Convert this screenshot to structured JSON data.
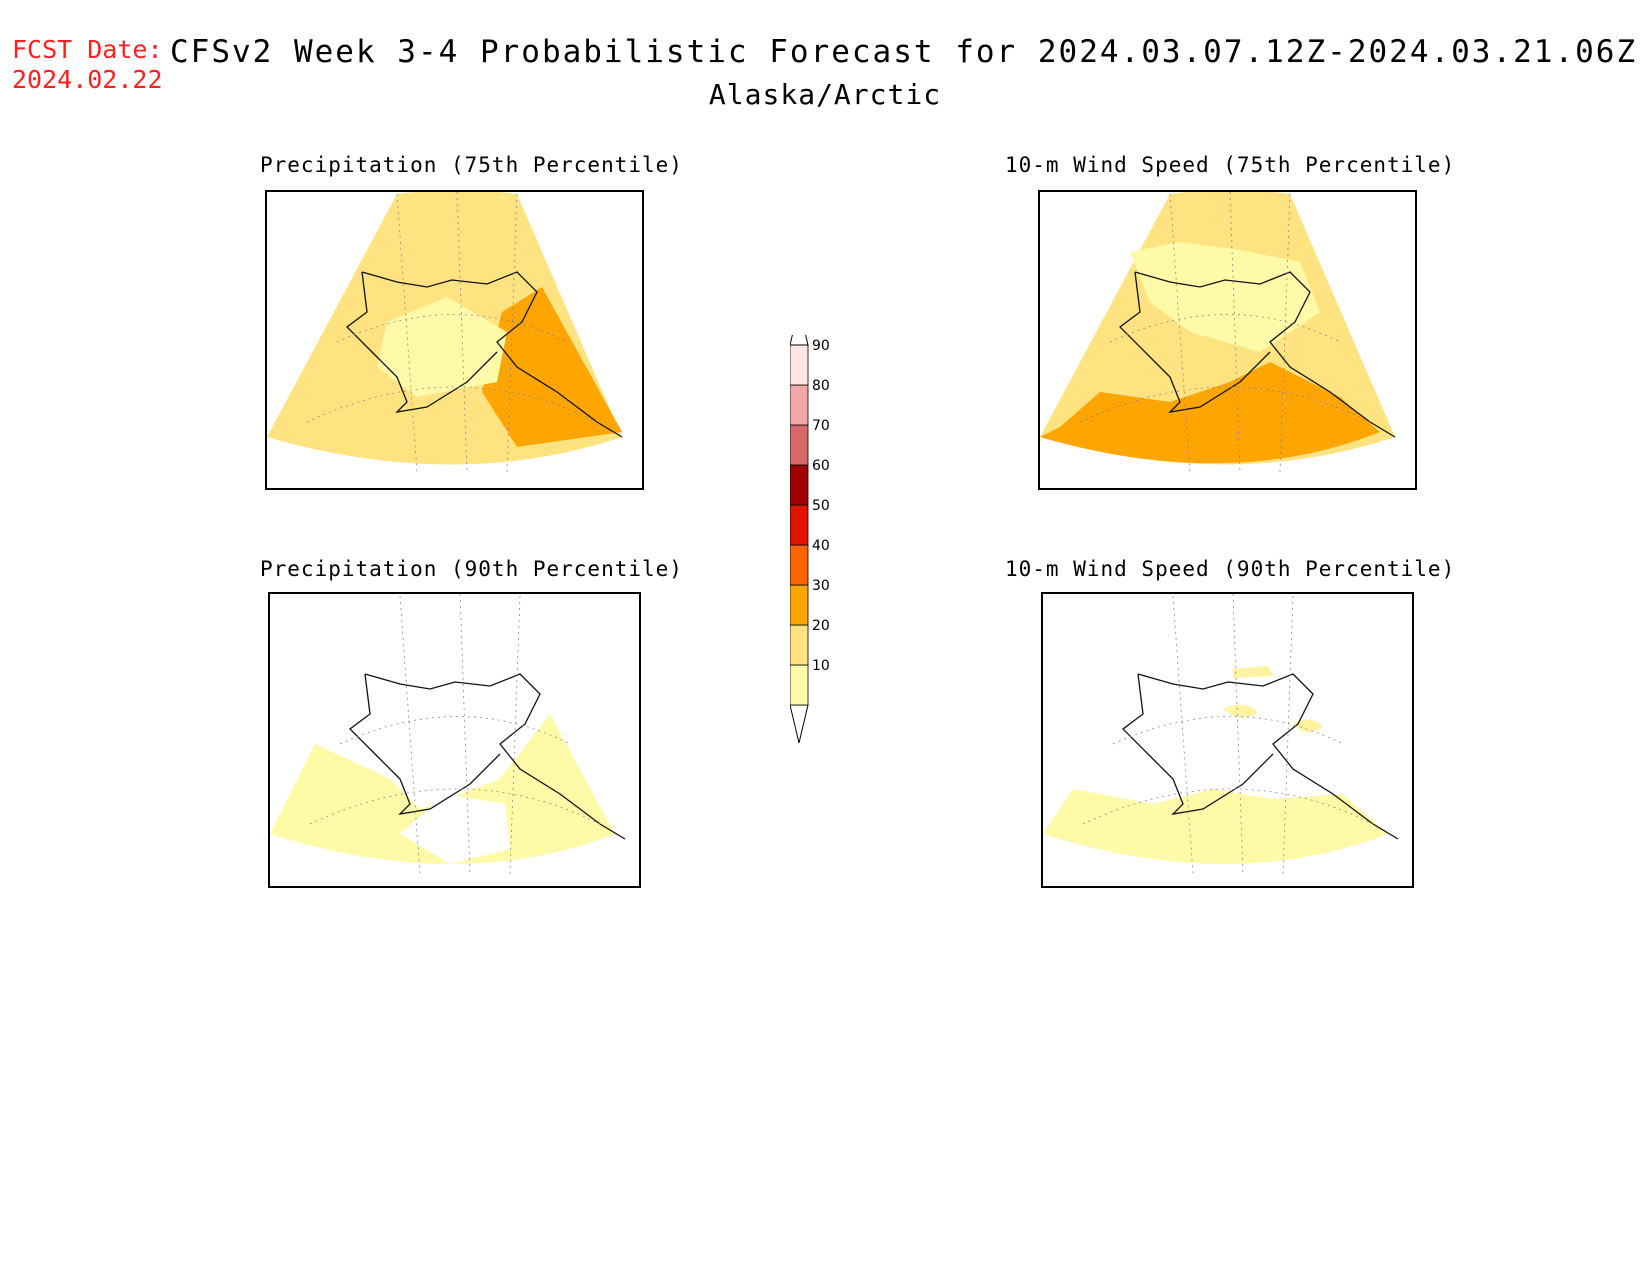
{
  "header": {
    "fcst_label": "FCST Date:",
    "fcst_date": "2024.02.22",
    "title": "CFSv2 Week 3-4 Probabilistic Forecast for 2024.03.07.12Z-2024.03.21.06Z",
    "region": "Alaska/Arctic"
  },
  "panels": [
    {
      "id": "precip75",
      "title": "Precipitation (75th Percentile)",
      "dominant_color": "#ffe380",
      "hotspot_color": "#ffa500"
    },
    {
      "id": "wind75",
      "title": "10-m Wind Speed (75th Percentile)",
      "dominant_color": "#ffe380",
      "hotspot_color": "#ffa500"
    },
    {
      "id": "precip90",
      "title": "Precipitation (90th Percentile)",
      "dominant_color": "#fffaa8",
      "hotspot_color": "#fff3a0"
    },
    {
      "id": "wind90",
      "title": "10-m Wind Speed (90th Percentile)",
      "dominant_color": "#fffaa8",
      "hotspot_color": "#fff3a0"
    }
  ],
  "colorbar": {
    "levels": [
      "10",
      "20",
      "30",
      "40",
      "50",
      "60",
      "70",
      "80",
      "90"
    ],
    "colors": [
      "#fffaa8",
      "#ffe380",
      "#ffa500",
      "#ff6400",
      "#e01400",
      "#a00000",
      "#d86868",
      "#f0a8a8",
      "#ffe6e6"
    ]
  }
}
